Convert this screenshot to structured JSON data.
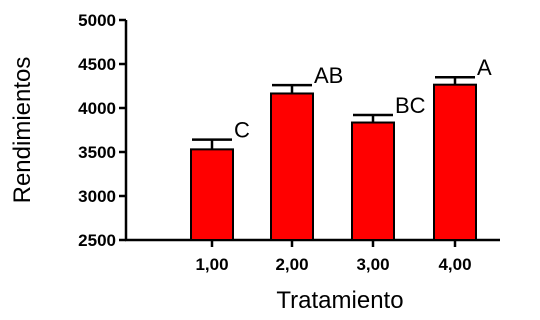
{
  "chart_data": {
    "type": "bar",
    "categories": [
      "1,00",
      "2,00",
      "3,00",
      "4,00"
    ],
    "values": [
      3530,
      4165,
      3835,
      4265
    ],
    "error_upper": [
      3640,
      4260,
      3920,
      4350
    ],
    "annotations": [
      "C",
      "AB",
      "BC",
      "A"
    ],
    "title": "",
    "xlabel": "Tratamiento",
    "ylabel": "Rendimientos",
    "ylim": [
      2500,
      5000
    ],
    "yticks": [
      2500,
      3000,
      3500,
      4000,
      4500,
      5000
    ],
    "grid": false,
    "legend": "none",
    "bar_color": "#ff0000",
    "bar_edge_color": "#000000"
  }
}
